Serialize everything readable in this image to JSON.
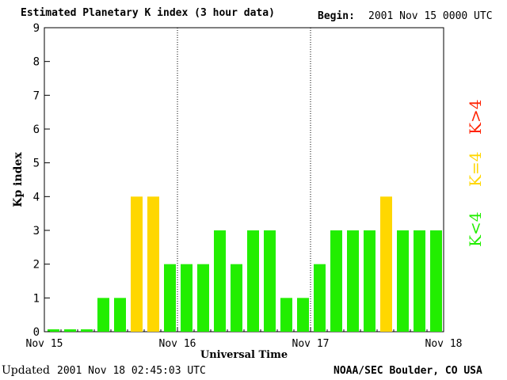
{
  "header": {
    "title": "Estimated Planetary K index (3 hour data)",
    "begin_label": "Begin:",
    "begin_value": "2001 Nov 15 0000 UTC"
  },
  "footer": {
    "updated_label": "Updated",
    "updated_value": "2001 Nov 18 02:45:03 UTC",
    "source": "NOAA/SEC Boulder, CO USA"
  },
  "legend": {
    "low": {
      "label": "K<4",
      "color": "#22ee00"
    },
    "mid": {
      "label": "K=4",
      "color": "#ffd700"
    },
    "high": {
      "label": "K>4",
      "color": "#ff2200"
    }
  },
  "chart_data": {
    "type": "bar",
    "title": "Estimated Planetary K index (3 hour data)",
    "xlabel": "Universal Time",
    "ylabel": "Kp index",
    "ylim": [
      0,
      9
    ],
    "yticks": [
      0,
      1,
      2,
      3,
      4,
      5,
      6,
      7,
      8,
      9
    ],
    "xticks": [
      "Nov 15",
      "Nov 16",
      "Nov 17",
      "Nov 18"
    ],
    "bar_interval_hours": 3,
    "values": [
      0,
      0,
      0,
      1,
      1,
      4,
      4,
      2,
      2,
      2,
      3,
      2,
      3,
      3,
      1,
      1,
      2,
      3,
      3,
      3,
      4,
      3,
      3,
      3
    ],
    "day_separators": "dotted",
    "grid": false
  }
}
